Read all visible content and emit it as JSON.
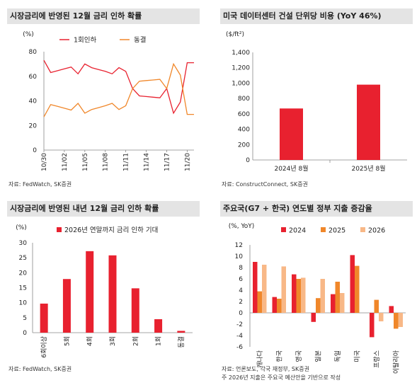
{
  "chart_data": [
    {
      "type": "line",
      "title": "시장금리에 반영된 12월 금리 인하 확률",
      "unit": "(%)",
      "categories": [
        "10/30",
        "10/31",
        "11/01",
        "11/02",
        "11/03",
        "11/04",
        "11/05",
        "11/06",
        "11/07",
        "11/08",
        "11/09",
        "11/10",
        "11/11",
        "11/12",
        "11/13",
        "11/14",
        "11/15",
        "11/16",
        "11/17",
        "11/18",
        "11/19",
        "11/20",
        "11/21"
      ],
      "tick_labels": [
        "10/30",
        "11/02",
        "11/05",
        "11/08",
        "11/11",
        "11/14",
        "11/17",
        "11/20"
      ],
      "tick_indices": [
        0,
        3,
        6,
        9,
        12,
        15,
        18,
        21
      ],
      "ylim": [
        0,
        80
      ],
      "yticks": [
        0,
        20,
        40,
        60,
        80
      ],
      "series": [
        {
          "name": "1회인하",
          "color": "#e8212f",
          "values": [
            73,
            63,
            64.5,
            66,
            67.5,
            62,
            70,
            67,
            65.5,
            64,
            62,
            67,
            64,
            50,
            44,
            43.5,
            43,
            42.5,
            50,
            30,
            39,
            71,
            71
          ]
        },
        {
          "name": "동결",
          "color": "#f0872a",
          "values": [
            27,
            37,
            35.5,
            34,
            32.5,
            38,
            30,
            33,
            34.5,
            36,
            38,
            33,
            36,
            50,
            56,
            56.5,
            57,
            57.5,
            50,
            70,
            61,
            29,
            29
          ]
        }
      ],
      "source": "자료: FedWatch, SK증권"
    },
    {
      "type": "bar",
      "title": "미국 데이터센터 건설 단위당 비용 (YoY 46%)",
      "unit": "($/ft²)",
      "categories": [
        "2024년 8월",
        "2025년 8월"
      ],
      "values": [
        670,
        980
      ],
      "color": "#e8212f",
      "ylim": [
        0,
        1400
      ],
      "yticks": [
        0,
        200,
        400,
        600,
        800,
        1000,
        1200,
        1400
      ],
      "ytick_labels": [
        "0",
        "200",
        "400",
        "600",
        "800",
        "1,000",
        "1,200",
        "1,400"
      ],
      "source": "자료: ConstructConnect, SK증권"
    },
    {
      "type": "bar",
      "title": "시장금리에 반영된 내년 12월 금리 인하 확률",
      "unit": "(%)",
      "series": [
        {
          "name": "2026년 연말까지 금리 인하 기대",
          "color": "#e8212f"
        }
      ],
      "categories": [
        "6회이상",
        "5회",
        "4회",
        "3회",
        "2회",
        "1회",
        "동결"
      ],
      "values": [
        9.7,
        17.9,
        27.2,
        25.8,
        14.8,
        4.5,
        0.6
      ],
      "ylim": [
        0,
        30
      ],
      "yticks": [
        0,
        5,
        10,
        15,
        20,
        25,
        30
      ],
      "source": "자료: FedWatch, SK증권"
    },
    {
      "type": "bar",
      "title": "주요국(G7 + 한국) 연도별 정부 지출 증감율",
      "unit": "(%, YoY)",
      "categories": [
        "캐나다",
        "한국",
        "영국",
        "일본",
        "독일",
        "미국",
        "프랑스",
        "이탈리아"
      ],
      "series": [
        {
          "name": "2024",
          "color": "#e8212f",
          "values": [
            9.0,
            2.8,
            6.8,
            -1.6,
            3.3,
            10.2,
            -4.3,
            1.2
          ]
        },
        {
          "name": "2025",
          "color": "#f0872a",
          "values": [
            3.8,
            2.5,
            6.0,
            2.6,
            5.5,
            8.3,
            2.3,
            -2.8
          ]
        },
        {
          "name": "2026",
          "color": "#f8b887",
          "values": [
            8.5,
            8.2,
            6.2,
            6.0,
            3.5,
            0,
            -1.5,
            -2.5
          ]
        }
      ],
      "ylim": [
        -6,
        12
      ],
      "yticks": [
        -6,
        -4,
        -2,
        0,
        2,
        4,
        6,
        8,
        10,
        12
      ],
      "source": "자료: 언론보도, 각국 재정부, SK증권",
      "note": "주 2026년 지출은 주요국 예산안을 기반으로 작성"
    }
  ]
}
